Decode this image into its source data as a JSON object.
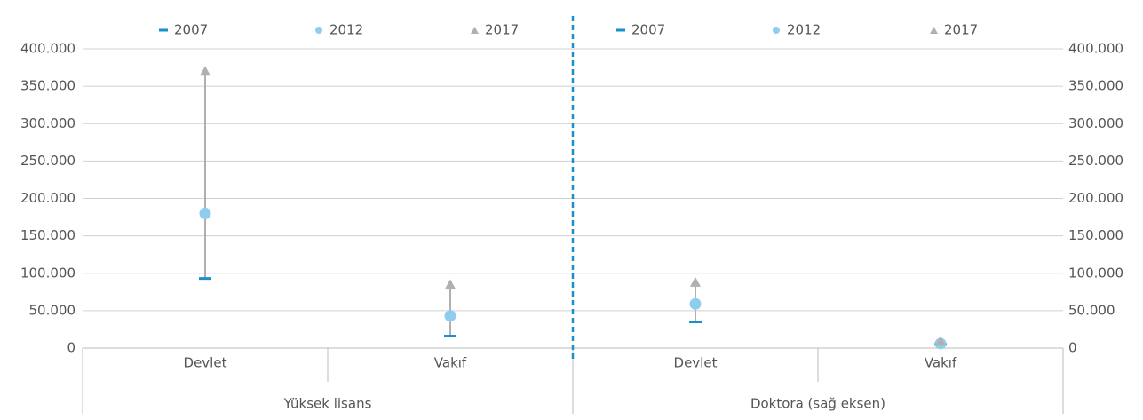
{
  "chart_data": {
    "type": "dot-range",
    "groups": [
      {
        "label": "Yüksek lisans",
        "categories": [
          "Devlet",
          "Vakıf"
        ],
        "axis": "y"
      },
      {
        "label": "Doktora (sağ eksen)",
        "categories": [
          "Devlet",
          "Vakıf"
        ],
        "axis": "y2"
      }
    ],
    "series": [
      {
        "name": "2007",
        "color": "#1a8fcc",
        "marker": "dash",
        "values": [
          93000,
          16000,
          35000,
          5000
        ]
      },
      {
        "name": "2012",
        "color": "#8ecdee",
        "marker": "circle",
        "values": [
          180000,
          43000,
          59000,
          6000
        ]
      },
      {
        "name": "2017",
        "color": "#b0b0b0",
        "marker": "triangle",
        "values": [
          370000,
          85000,
          88000,
          9000
        ]
      }
    ],
    "range_line_color": "#b0b0b0",
    "ylim": [
      0,
      400000
    ],
    "yticks": [
      0,
      {
        "value": 50000,
        "label": "50.000"
      },
      {
        "value": 100000,
        "label": "100.000"
      },
      {
        "value": 150000,
        "label": "150.000"
      },
      {
        "value": 200000,
        "label": "200.000"
      },
      {
        "value": 250000,
        "label": "250.000"
      },
      {
        "value": 300000,
        "label": "300.000"
      },
      {
        "value": 350000,
        "label": "350.000"
      },
      {
        "value": 400000,
        "label": "400.000"
      }
    ],
    "y2lim": [
      0,
      400000
    ],
    "y2ticks": [
      0,
      {
        "value": 50000,
        "label": "50.000"
      },
      {
        "value": 100000,
        "label": "100.000"
      },
      {
        "value": 150000,
        "label": "150.000"
      },
      {
        "value": 200000,
        "label": "200.000"
      },
      {
        "value": 250000,
        "label": "250.000"
      },
      {
        "value": 300000,
        "label": "300.000"
      },
      {
        "value": 350000,
        "label": "350.000"
      },
      {
        "value": 400000,
        "label": "400.000"
      }
    ],
    "grid": true
  }
}
